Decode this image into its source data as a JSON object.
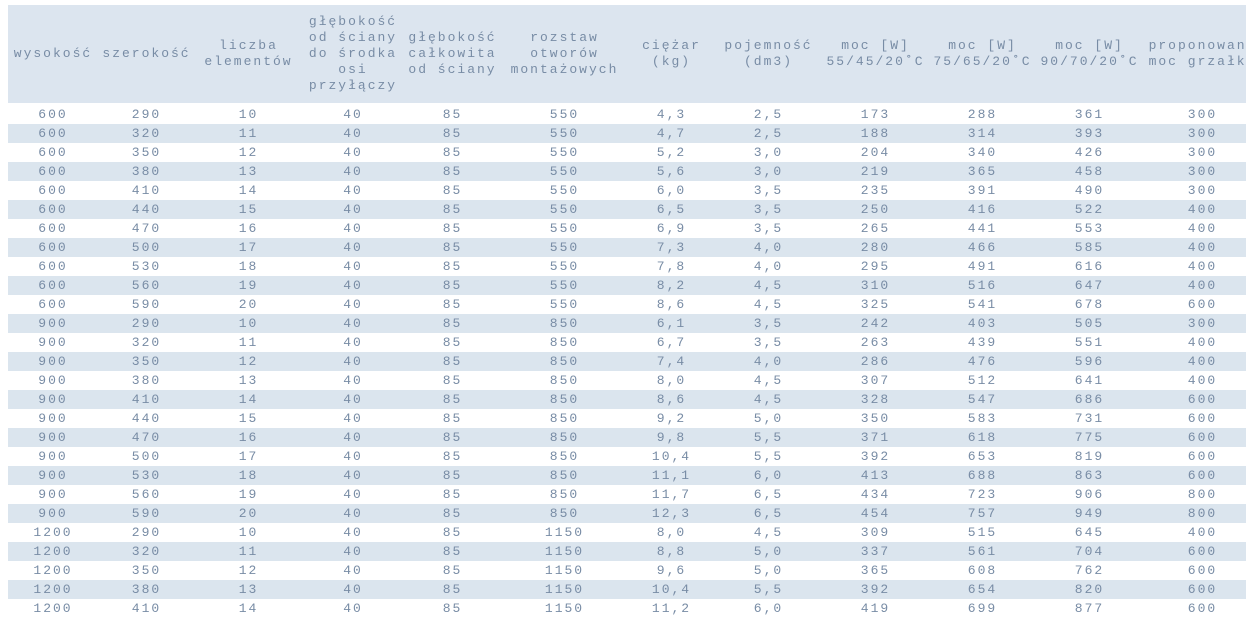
{
  "chart_data": {
    "type": "table",
    "title": "",
    "columns": [
      {
        "id": "wysokosc",
        "label": "wysokość"
      },
      {
        "id": "szerokosc",
        "label": "szerokość"
      },
      {
        "id": "liczba-elementow",
        "label": "liczba\nelementów"
      },
      {
        "id": "glebokosc-os-przylaczy",
        "label": "głębokość\nod ściany\ndo środka\nosi\nprzyłączy"
      },
      {
        "id": "glebokosc-calkowita",
        "label": "głębokość\ncałkowita\nod ściany"
      },
      {
        "id": "rozstaw-otworow",
        "label": "rozstaw\notworów\nmontażowych"
      },
      {
        "id": "ciezar-kg",
        "label": "ciężar\n(kg)"
      },
      {
        "id": "pojemnosc-dm3",
        "label": "pojemność\n(dm3)"
      },
      {
        "id": "moc-55-45-20",
        "label": "moc [W]\n55/45/20˚C"
      },
      {
        "id": "moc-75-65-20",
        "label": "moc [W]\n75/65/20˚C"
      },
      {
        "id": "moc-90-70-20",
        "label": "moc [W]\n90/70/20˚C"
      },
      {
        "id": "proponowana-moc-grzalki",
        "label": "proponowana\nmoc grzałki"
      }
    ],
    "rows": [
      [
        "600",
        "290",
        "10",
        "40",
        "85",
        "550",
        "4,3",
        "2,5",
        "173",
        "288",
        "361",
        "300"
      ],
      [
        "600",
        "320",
        "11",
        "40",
        "85",
        "550",
        "4,7",
        "2,5",
        "188",
        "314",
        "393",
        "300"
      ],
      [
        "600",
        "350",
        "12",
        "40",
        "85",
        "550",
        "5,2",
        "3,0",
        "204",
        "340",
        "426",
        "300"
      ],
      [
        "600",
        "380",
        "13",
        "40",
        "85",
        "550",
        "5,6",
        "3,0",
        "219",
        "365",
        "458",
        "300"
      ],
      [
        "600",
        "410",
        "14",
        "40",
        "85",
        "550",
        "6,0",
        "3,5",
        "235",
        "391",
        "490",
        "300"
      ],
      [
        "600",
        "440",
        "15",
        "40",
        "85",
        "550",
        "6,5",
        "3,5",
        "250",
        "416",
        "522",
        "400"
      ],
      [
        "600",
        "470",
        "16",
        "40",
        "85",
        "550",
        "6,9",
        "3,5",
        "265",
        "441",
        "553",
        "400"
      ],
      [
        "600",
        "500",
        "17",
        "40",
        "85",
        "550",
        "7,3",
        "4,0",
        "280",
        "466",
        "585",
        "400"
      ],
      [
        "600",
        "530",
        "18",
        "40",
        "85",
        "550",
        "7,8",
        "4,0",
        "295",
        "491",
        "616",
        "400"
      ],
      [
        "600",
        "560",
        "19",
        "40",
        "85",
        "550",
        "8,2",
        "4,5",
        "310",
        "516",
        "647",
        "400"
      ],
      [
        "600",
        "590",
        "20",
        "40",
        "85",
        "550",
        "8,6",
        "4,5",
        "325",
        "541",
        "678",
        "600"
      ],
      [
        "900",
        "290",
        "10",
        "40",
        "85",
        "850",
        "6,1",
        "3,5",
        "242",
        "403",
        "505",
        "300"
      ],
      [
        "900",
        "320",
        "11",
        "40",
        "85",
        "850",
        "6,7",
        "3,5",
        "263",
        "439",
        "551",
        "400"
      ],
      [
        "900",
        "350",
        "12",
        "40",
        "85",
        "850",
        "7,4",
        "4,0",
        "286",
        "476",
        "596",
        "400"
      ],
      [
        "900",
        "380",
        "13",
        "40",
        "85",
        "850",
        "8,0",
        "4,5",
        "307",
        "512",
        "641",
        "400"
      ],
      [
        "900",
        "410",
        "14",
        "40",
        "85",
        "850",
        "8,6",
        "4,5",
        "328",
        "547",
        "686",
        "600"
      ],
      [
        "900",
        "440",
        "15",
        "40",
        "85",
        "850",
        "9,2",
        "5,0",
        "350",
        "583",
        "731",
        "600"
      ],
      [
        "900",
        "470",
        "16",
        "40",
        "85",
        "850",
        "9,8",
        "5,5",
        "371",
        "618",
        "775",
        "600"
      ],
      [
        "900",
        "500",
        "17",
        "40",
        "85",
        "850",
        "10,4",
        "5,5",
        "392",
        "653",
        "819",
        "600"
      ],
      [
        "900",
        "530",
        "18",
        "40",
        "85",
        "850",
        "11,1",
        "6,0",
        "413",
        "688",
        "863",
        "600"
      ],
      [
        "900",
        "560",
        "19",
        "40",
        "85",
        "850",
        "11,7",
        "6,5",
        "434",
        "723",
        "906",
        "800"
      ],
      [
        "900",
        "590",
        "20",
        "40",
        "85",
        "850",
        "12,3",
        "6,5",
        "454",
        "757",
        "949",
        "800"
      ],
      [
        "1200",
        "290",
        "10",
        "40",
        "85",
        "1150",
        "8,0",
        "4,5",
        "309",
        "515",
        "645",
        "400"
      ],
      [
        "1200",
        "320",
        "11",
        "40",
        "85",
        "1150",
        "8,8",
        "5,0",
        "337",
        "561",
        "704",
        "600"
      ],
      [
        "1200",
        "350",
        "12",
        "40",
        "85",
        "1150",
        "9,6",
        "5,0",
        "365",
        "608",
        "762",
        "600"
      ],
      [
        "1200",
        "380",
        "13",
        "40",
        "85",
        "1150",
        "10,4",
        "5,5",
        "392",
        "654",
        "820",
        "600"
      ],
      [
        "1200",
        "410",
        "14",
        "40",
        "85",
        "1150",
        "11,2",
        "6,0",
        "419",
        "699",
        "877",
        "600"
      ]
    ]
  },
  "colors": {
    "header_bg": "#dce5ef",
    "stripe_bg": "#dbe5ee",
    "row_bg": "#ffffff",
    "text": "#788ca5"
  }
}
